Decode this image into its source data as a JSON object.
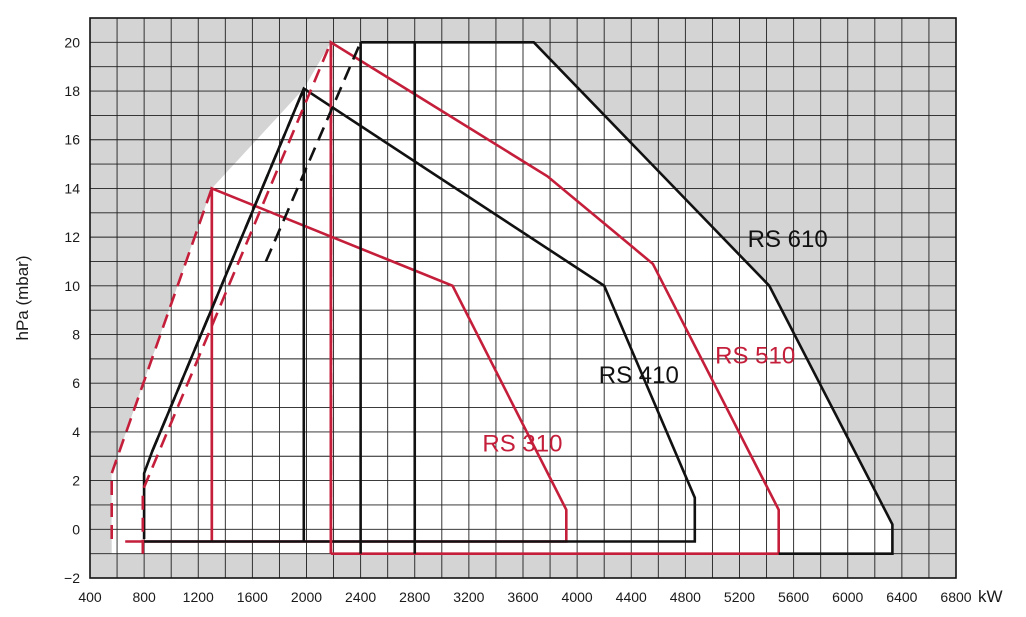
{
  "chart_data": {
    "type": "line",
    "xlabel": "kW",
    "ylabel": "hPa (mbar)",
    "xlim": [
      400,
      6800
    ],
    "ylim": [
      -2,
      21
    ],
    "x_ticks": [
      400,
      800,
      1200,
      1600,
      2000,
      2400,
      2800,
      3200,
      3600,
      4000,
      4400,
      4800,
      5200,
      5600,
      6000,
      6400,
      6800
    ],
    "y_ticks": [
      -2,
      0,
      2,
      4,
      6,
      8,
      10,
      12,
      14,
      16,
      18,
      20
    ],
    "grid": true,
    "shaded_background_outside_envelopes": true,
    "series": [
      {
        "name": "RS 310",
        "color": "#c41e3a",
        "label_at": [
          3300,
          3.2
        ],
        "solid": [
          [
            1300,
            -0.5
          ],
          [
            1300,
            14
          ],
          [
            3080,
            10
          ],
          [
            3920,
            0.8
          ],
          [
            3920,
            -0.5
          ],
          [
            660,
            -0.5
          ]
        ],
        "dashed": [
          [
            560,
            -0.4
          ],
          [
            560,
            2.3
          ],
          [
            1300,
            14
          ]
        ],
        "vertical": [
          [
            1300,
            -0.5,
            14
          ]
        ]
      },
      {
        "name": "RS 410",
        "color": "#111111",
        "label_at": [
          4160,
          6.0
        ],
        "solid": [
          [
            800,
            -0.4
          ],
          [
            800,
            2.3
          ],
          [
            860,
            3.2
          ],
          [
            1980,
            18.1
          ],
          [
            4200,
            10
          ],
          [
            4870,
            1.3
          ],
          [
            4870,
            -0.5
          ],
          [
            800,
            -0.5
          ]
        ],
        "dashed": [
          [
            860,
            3.2
          ],
          [
            1980,
            18.1
          ]
        ],
        "vertical": [
          [
            1980,
            -0.5,
            18.1
          ]
        ]
      },
      {
        "name": "RS 510",
        "color": "#c41e3a",
        "label_at": [
          5020,
          6.8
        ],
        "solid": [
          [
            2180,
            -1.0
          ],
          [
            2180,
            20
          ],
          [
            3780,
            14.5
          ],
          [
            4560,
            10.9
          ],
          [
            5490,
            0.8
          ],
          [
            5490,
            -1.0
          ],
          [
            2180,
            -1.0
          ]
        ],
        "dashed": [
          [
            790,
            -1.0
          ],
          [
            790,
            1.6
          ],
          [
            2180,
            20
          ],
          [
            2180,
            -1.0
          ]
        ],
        "vertical": [
          [
            2180,
            -1.0,
            20
          ]
        ]
      },
      {
        "name": "RS 610",
        "color": "#111111",
        "label_at": [
          5260,
          11.6
        ],
        "solid": [
          [
            2400,
            20
          ],
          [
            3680,
            20
          ],
          [
            5420,
            10
          ],
          [
            6330,
            0.2
          ],
          [
            6330,
            -1.0
          ],
          [
            5490,
            -1.0
          ]
        ],
        "dashed": [
          [
            1700,
            11.0
          ],
          [
            2400,
            20
          ]
        ],
        "vertical": [
          [
            2400,
            -1.0,
            20
          ],
          [
            2800,
            -1.0,
            20
          ]
        ]
      }
    ]
  }
}
